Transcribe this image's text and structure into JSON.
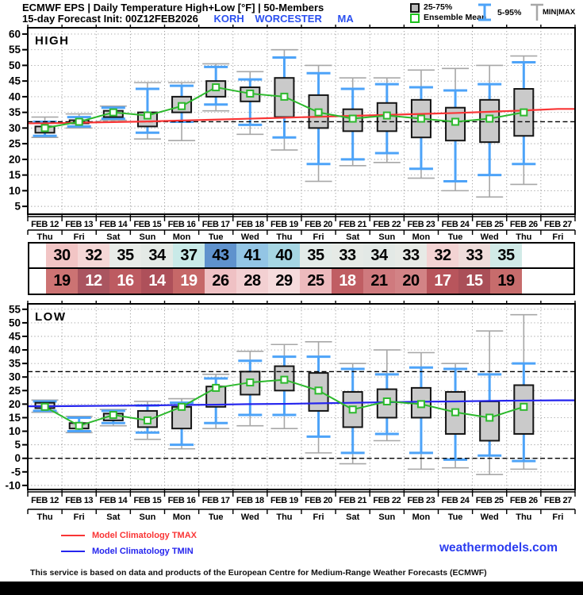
{
  "header": {
    "title_line1": "ECMWF EPS | Daily Temperature High+Low [°F] | 50-Members",
    "init_text": "15-day Forecast Init: 00Z12FEB2026",
    "station_id": "KORH",
    "station_name": "WORCESTER",
    "station_state": "MA",
    "legend": {
      "box_label": "25-75%",
      "mean_label": "Ensemble Mean",
      "whisker_label": "5-95%",
      "minmax_label": "MIN|MAX"
    }
  },
  "colors": {
    "station_text": "#2b50f0",
    "whisker_blue": "#4da3f8",
    "whisker_gray": "#a7a7a7",
    "box_fill": "#cacaca",
    "box_stroke": "#151515",
    "mean_green": "#2db92d",
    "tmax_red": "#f93535",
    "tmin_blue": "#2525ee",
    "link_blue": "#2b3cf0"
  },
  "chart_data": [
    {
      "type": "box",
      "panel_label": "HIGH",
      "ylim": [
        2.5,
        62
      ],
      "yticks": [
        60,
        55,
        50,
        45,
        40,
        35,
        30,
        25,
        20,
        15,
        10,
        5
      ],
      "threshold_lines": [
        32
      ],
      "grid": true,
      "categories": [
        "FEB 12",
        "FEB 13",
        "FEB 14",
        "FEB 15",
        "FEB 16",
        "FEB 17",
        "FEB 18",
        "FEB 19",
        "FEB 20",
        "FEB 21",
        "FEB 22",
        "FEB 23",
        "FEB 24",
        "FEB 25",
        "FEB 26",
        "FEB 27"
      ],
      "weekdays": [
        "Thu",
        "Fri",
        "Sat",
        "Sun",
        "Mon",
        "Tue",
        "Wed",
        "Thu",
        "Fri",
        "Sat",
        "Sun",
        "Mon",
        "Tue",
        "Wed",
        "Thu",
        "Fri"
      ],
      "climatology": {
        "label": "Model Climatology TMAX",
        "color": "#f93535",
        "values": [
          31.5,
          31.7,
          31.9,
          32.1,
          32.4,
          32.7,
          33.0,
          33.3,
          33.6,
          33.9,
          34.2,
          34.5,
          34.8,
          35.2,
          35.6,
          36.1
        ]
      },
      "days": [
        {
          "date": "FEB 12",
          "weekday": "Thu",
          "mean": 30,
          "p25_75": [
            28.5,
            30.5
          ],
          "p5_95": [
            27.5,
            32
          ],
          "minmax": [
            27,
            33.5
          ]
        },
        {
          "date": "FEB 13",
          "weekday": "Fri",
          "mean": 32,
          "p25_75": [
            31.5,
            32.5
          ],
          "p5_95": [
            30.5,
            33.5
          ],
          "minmax": [
            30,
            34.5
          ]
        },
        {
          "date": "FEB 14",
          "weekday": "Sat",
          "mean": 35,
          "p25_75": [
            33.5,
            35.5
          ],
          "p5_95": [
            33,
            36.5
          ],
          "minmax": [
            32.5,
            37
          ]
        },
        {
          "date": "FEB 15",
          "weekday": "Sun",
          "mean": 34,
          "p25_75": [
            30.5,
            35
          ],
          "p5_95": [
            28.5,
            42.5
          ],
          "minmax": [
            26.5,
            44.5
          ]
        },
        {
          "date": "FEB 16",
          "weekday": "Mon",
          "mean": 37,
          "p25_75": [
            35,
            40
          ],
          "p5_95": [
            32,
            43.5
          ],
          "minmax": [
            26,
            44.5
          ]
        },
        {
          "date": "FEB 17",
          "weekday": "Tue",
          "mean": 43,
          "p25_75": [
            40,
            45
          ],
          "p5_95": [
            37.5,
            49.5
          ],
          "minmax": [
            35.5,
            50.5
          ]
        },
        {
          "date": "FEB 18",
          "weekday": "Wed",
          "mean": 41,
          "p25_75": [
            38.5,
            43
          ],
          "p5_95": [
            31,
            45.5
          ],
          "minmax": [
            28,
            48
          ]
        },
        {
          "date": "FEB 19",
          "weekday": "Thu",
          "mean": 40,
          "p25_75": [
            33.5,
            46
          ],
          "p5_95": [
            27,
            52.5
          ],
          "minmax": [
            23,
            55
          ]
        },
        {
          "date": "FEB 20",
          "weekday": "Fri",
          "mean": 35,
          "p25_75": [
            30,
            40.5
          ],
          "p5_95": [
            18.5,
            47.5
          ],
          "minmax": [
            13,
            50
          ]
        },
        {
          "date": "FEB 21",
          "weekday": "Sat",
          "mean": 33,
          "p25_75": [
            29,
            36
          ],
          "p5_95": [
            20,
            42.5
          ],
          "minmax": [
            18,
            46
          ]
        },
        {
          "date": "FEB 22",
          "weekday": "Sun",
          "mean": 34,
          "p25_75": [
            29,
            38
          ],
          "p5_95": [
            22,
            44
          ],
          "minmax": [
            19,
            46
          ]
        },
        {
          "date": "FEB 23",
          "weekday": "Mon",
          "mean": 33,
          "p25_75": [
            27,
            39
          ],
          "p5_95": [
            17,
            43
          ],
          "minmax": [
            14,
            48.5
          ]
        },
        {
          "date": "FEB 24",
          "weekday": "Tue",
          "mean": 32,
          "p25_75": [
            26,
            36.5
          ],
          "p5_95": [
            13,
            42
          ],
          "minmax": [
            10,
            49
          ]
        },
        {
          "date": "FEB 25",
          "weekday": "Wed",
          "mean": 33,
          "p25_75": [
            25.5,
            39
          ],
          "p5_95": [
            15,
            44
          ],
          "minmax": [
            8,
            50
          ]
        },
        {
          "date": "FEB 26",
          "weekday": "Thu",
          "mean": 35,
          "p25_75": [
            27.5,
            42.5
          ],
          "p5_95": [
            18.5,
            51
          ],
          "minmax": [
            12,
            53
          ]
        }
      ]
    },
    {
      "type": "box",
      "panel_label": "LOW",
      "ylim": [
        -11.5,
        57
      ],
      "yticks": [
        55,
        50,
        45,
        40,
        35,
        30,
        25,
        20,
        15,
        10,
        5,
        0,
        -5,
        -10
      ],
      "threshold_lines": [
        32,
        0
      ],
      "grid": true,
      "categories": [
        "FEB 12",
        "FEB 13",
        "FEB 14",
        "FEB 15",
        "FEB 16",
        "FEB 17",
        "FEB 18",
        "FEB 19",
        "FEB 20",
        "FEB 21",
        "FEB 22",
        "FEB 23",
        "FEB 24",
        "FEB 25",
        "FEB 26",
        "FEB 27"
      ],
      "weekdays": [
        "Thu",
        "Fri",
        "Sat",
        "Sun",
        "Mon",
        "Tue",
        "Wed",
        "Thu",
        "Fri",
        "Sat",
        "Sun",
        "Mon",
        "Tue",
        "Wed",
        "Thu",
        "Fri"
      ],
      "climatology": {
        "label": "Model Climatology TMIN",
        "color": "#2525ee",
        "values": [
          19.2,
          19.3,
          19.4,
          19.5,
          19.7,
          19.8,
          20.0,
          20.1,
          20.3,
          20.5,
          20.7,
          20.9,
          21.0,
          21.2,
          21.3,
          21.4
        ]
      },
      "days": [
        {
          "date": "FEB 12",
          "weekday": "Thu",
          "mean": 19,
          "p25_75": [
            18.5,
            20.5
          ],
          "p5_95": [
            17.5,
            21
          ],
          "minmax": [
            17,
            21.5
          ]
        },
        {
          "date": "FEB 13",
          "weekday": "Fri",
          "mean": 12,
          "p25_75": [
            11,
            13
          ],
          "p5_95": [
            10,
            15
          ],
          "minmax": [
            9.5,
            15.5
          ]
        },
        {
          "date": "FEB 14",
          "weekday": "Sat",
          "mean": 16,
          "p25_75": [
            14,
            16.5
          ],
          "p5_95": [
            13,
            17.5
          ],
          "minmax": [
            12,
            18
          ]
        },
        {
          "date": "FEB 15",
          "weekday": "Sun",
          "mean": 14,
          "p25_75": [
            11.5,
            17.5
          ],
          "p5_95": [
            9.5,
            19.5
          ],
          "minmax": [
            7,
            21
          ]
        },
        {
          "date": "FEB 16",
          "weekday": "Mon",
          "mean": 19,
          "p25_75": [
            11,
            19
          ],
          "p5_95": [
            5,
            20.5
          ],
          "minmax": [
            3.5,
            22
          ]
        },
        {
          "date": "FEB 17",
          "weekday": "Tue",
          "mean": 26,
          "p25_75": [
            19,
            26.5
          ],
          "p5_95": [
            13,
            29.5
          ],
          "minmax": [
            11,
            31
          ]
        },
        {
          "date": "FEB 18",
          "weekday": "Wed",
          "mean": 28,
          "p25_75": [
            23.5,
            32
          ],
          "p5_95": [
            16,
            36
          ],
          "minmax": [
            12,
            39.5
          ]
        },
        {
          "date": "FEB 19",
          "weekday": "Thu",
          "mean": 29,
          "p25_75": [
            25,
            34
          ],
          "p5_95": [
            16,
            37.5
          ],
          "minmax": [
            11,
            42
          ]
        },
        {
          "date": "FEB 20",
          "weekday": "Fri",
          "mean": 25,
          "p25_75": [
            17.5,
            31.5
          ],
          "p5_95": [
            8,
            37.5
          ],
          "minmax": [
            2,
            43
          ]
        },
        {
          "date": "FEB 21",
          "weekday": "Sat",
          "mean": 18,
          "p25_75": [
            11.5,
            24.5
          ],
          "p5_95": [
            2,
            33
          ],
          "minmax": [
            -2,
            35
          ]
        },
        {
          "date": "FEB 22",
          "weekday": "Sun",
          "mean": 21,
          "p25_75": [
            15,
            25.5
          ],
          "p5_95": [
            9,
            31
          ],
          "minmax": [
            6.5,
            40
          ]
        },
        {
          "date": "FEB 23",
          "weekday": "Mon",
          "mean": 20,
          "p25_75": [
            15,
            26
          ],
          "p5_95": [
            2,
            33.5
          ],
          "minmax": [
            -4,
            39
          ]
        },
        {
          "date": "FEB 24",
          "weekday": "Tue",
          "mean": 17,
          "p25_75": [
            9,
            24.5
          ],
          "p5_95": [
            -0.5,
            33
          ],
          "minmax": [
            -3.5,
            35
          ]
        },
        {
          "date": "FEB 25",
          "weekday": "Wed",
          "mean": 15,
          "p25_75": [
            6.5,
            21
          ],
          "p5_95": [
            1,
            31
          ],
          "minmax": [
            -6,
            47
          ]
        },
        {
          "date": "FEB 26",
          "weekday": "Thu",
          "mean": 19,
          "p25_75": [
            9,
            27
          ],
          "p5_95": [
            -1,
            35
          ],
          "minmax": [
            -4,
            53
          ]
        }
      ]
    }
  ],
  "table": {
    "rows": [
      {
        "name": "high-row",
        "cells": [
          {
            "v": "30",
            "bg": "#f2c5c5",
            "fg": "#000"
          },
          {
            "v": "32",
            "bg": "#f5d7d6",
            "fg": "#000"
          },
          {
            "v": "35",
            "bg": "#e8ece8",
            "fg": "#000"
          },
          {
            "v": "34",
            "bg": "#e4eae6",
            "fg": "#000"
          },
          {
            "v": "37",
            "bg": "#c9eae8",
            "fg": "#000"
          },
          {
            "v": "43",
            "bg": "#5f92cd",
            "fg": "#000"
          },
          {
            "v": "41",
            "bg": "#93c5e5",
            "fg": "#000"
          },
          {
            "v": "40",
            "bg": "#a6d6e3",
            "fg": "#000"
          },
          {
            "v": "35",
            "bg": "#e3ebe8",
            "fg": "#000"
          },
          {
            "v": "33",
            "bg": "#e6eae6",
            "fg": "#000"
          },
          {
            "v": "34",
            "bg": "#e3e9e6",
            "fg": "#000"
          },
          {
            "v": "33",
            "bg": "#e7eae6",
            "fg": "#000"
          },
          {
            "v": "32",
            "bg": "#f3d3d3",
            "fg": "#000"
          },
          {
            "v": "33",
            "bg": "#efdddb",
            "fg": "#000"
          },
          {
            "v": "35",
            "bg": "#d1eae7",
            "fg": "#000"
          },
          {
            "v": "",
            "bg": "#ffffff",
            "fg": "#000"
          }
        ]
      },
      {
        "name": "low-row",
        "cells": [
          {
            "v": "19",
            "bg": "#cc7373",
            "fg": "#000"
          },
          {
            "v": "12",
            "bg": "#aa5560",
            "fg": "#fff"
          },
          {
            "v": "16",
            "bg": "#bd5b61",
            "fg": "#fff"
          },
          {
            "v": "14",
            "bg": "#ae505a",
            "fg": "#fff"
          },
          {
            "v": "19",
            "bg": "#c66868",
            "fg": "#fff"
          },
          {
            "v": "26",
            "bg": "#efc1c4",
            "fg": "#000"
          },
          {
            "v": "28",
            "bg": "#f3d0d2",
            "fg": "#000"
          },
          {
            "v": "29",
            "bg": "#f6dbdc",
            "fg": "#000"
          },
          {
            "v": "25",
            "bg": "#edbabd",
            "fg": "#000"
          },
          {
            "v": "18",
            "bg": "#c05e63",
            "fg": "#fff"
          },
          {
            "v": "21",
            "bg": "#cf7a7e",
            "fg": "#000"
          },
          {
            "v": "20",
            "bg": "#d28386",
            "fg": "#000"
          },
          {
            "v": "17",
            "bg": "#b8555c",
            "fg": "#fff"
          },
          {
            "v": "15",
            "bg": "#aa4f58",
            "fg": "#fff"
          },
          {
            "v": "19",
            "bg": "#c76c6c",
            "fg": "#000"
          },
          {
            "v": "",
            "bg": "#ffffff",
            "fg": "#000"
          }
        ]
      }
    ]
  },
  "footer": {
    "legend_tmax": "Model Climatology TMAX",
    "legend_tmin": "Model Climatology TMIN",
    "website": "weathermodels.com",
    "disclaimer": "This service is based on data and products of the European Centre for Medium-Range Weather Forecasts (ECMWF)"
  }
}
